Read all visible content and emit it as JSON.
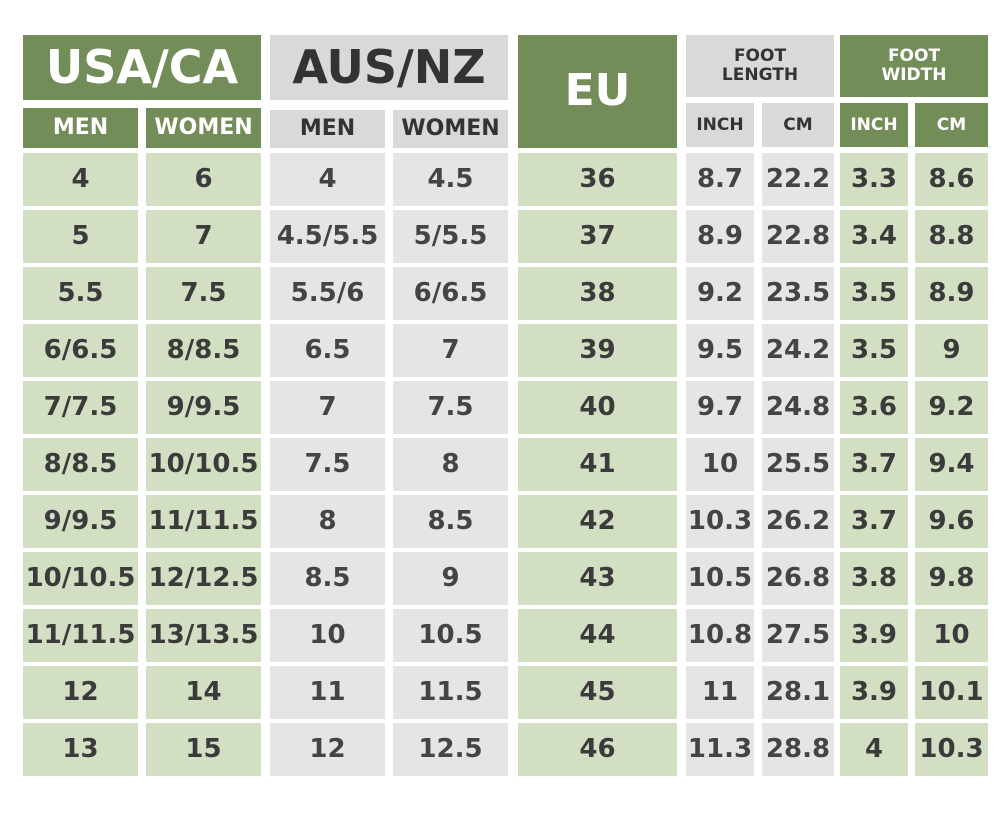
{
  "header": {
    "usa_ca": "USA/CA",
    "aus_nz": "AUS/NZ",
    "eu": "EU",
    "foot_length": [
      "FOOT",
      "LENGTH"
    ],
    "foot_width": [
      "FOOT",
      "WIDTH"
    ]
  },
  "subheader": [
    "MEN",
    "WOMEN",
    "MEN",
    "WOMEN",
    "INCH",
    "CM",
    "INCH",
    "CM"
  ],
  "rows": [
    [
      "4",
      "6",
      "4",
      "4.5",
      "36",
      "8.7",
      "22.2",
      "3.3",
      "8.6"
    ],
    [
      "5",
      "7",
      "4.5/5.5",
      "5/5.5",
      "37",
      "8.9",
      "22.8",
      "3.4",
      "8.8"
    ],
    [
      "5.5",
      "7.5",
      "5.5/6",
      "6/6.5",
      "38",
      "9.2",
      "23.5",
      "3.5",
      "8.9"
    ],
    [
      "6/6.5",
      "8/8.5",
      "6.5",
      "7",
      "39",
      "9.5",
      "24.2",
      "3.5",
      "9"
    ],
    [
      "7/7.5",
      "9/9.5",
      "7",
      "7.5",
      "40",
      "9.7",
      "24.8",
      "3.6",
      "9.2"
    ],
    [
      "8/8.5",
      "10/10.5",
      "7.5",
      "8",
      "41",
      "10",
      "25.5",
      "3.7",
      "9.4"
    ],
    [
      "9/9.5",
      "11/11.5",
      "8",
      "8.5",
      "42",
      "10.3",
      "26.2",
      "3.7",
      "9.6"
    ],
    [
      "10/10.5",
      "12/12.5",
      "8.5",
      "9",
      "43",
      "10.5",
      "26.8",
      "3.8",
      "9.8"
    ],
    [
      "11/11.5",
      "13/13.5",
      "10",
      "10.5",
      "44",
      "10.8",
      "27.5",
      "3.9",
      "10"
    ],
    [
      "12",
      "14",
      "11",
      "11.5",
      "45",
      "11",
      "28.1",
      "3.9",
      "10.1"
    ],
    [
      "13",
      "15",
      "12",
      "12.5",
      "46",
      "11.3",
      "28.8",
      "4",
      "10.3"
    ]
  ]
}
